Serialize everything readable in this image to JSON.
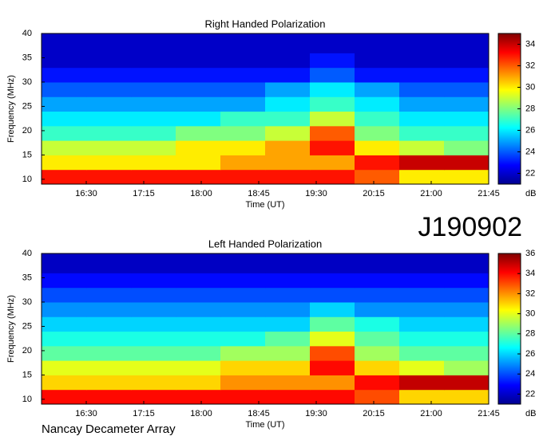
{
  "label": "J190902",
  "footer": "Nancay Decameter Array",
  "chart_data": [
    {
      "type": "heatmap",
      "title": "Right Handed Polarization",
      "xlabel": "Time (UT)",
      "ylabel": "Frequency (MHz)",
      "colorbar_label": "dB",
      "xbins": [
        955,
        990,
        1025,
        1060,
        1095,
        1130,
        1165,
        1200,
        1235,
        1270,
        1305
      ],
      "ybins": [
        9,
        12,
        15,
        18,
        21,
        24,
        27,
        30,
        33,
        36,
        40
      ],
      "values": [
        [
          33,
          33,
          33,
          33,
          33,
          33,
          33,
          32,
          30,
          30
        ],
        [
          30,
          30,
          30,
          30,
          31,
          31,
          31,
          33,
          34,
          34
        ],
        [
          29,
          29,
          29,
          30,
          30,
          31,
          33,
          30,
          29,
          28
        ],
        [
          27,
          27,
          27,
          28,
          28,
          29,
          32,
          28,
          27,
          27
        ],
        [
          26,
          26,
          26,
          26,
          27,
          27,
          29,
          27,
          26,
          26
        ],
        [
          25,
          25,
          25,
          25,
          25,
          26,
          27,
          26,
          25,
          25
        ],
        [
          24,
          24,
          24,
          24,
          24,
          25,
          26,
          25,
          24,
          24
        ],
        [
          23,
          23,
          23,
          23,
          23,
          23,
          24,
          23,
          23,
          23
        ],
        [
          22,
          22,
          22,
          22,
          22,
          22,
          23,
          22,
          22,
          22
        ],
        [
          22,
          22,
          22,
          22,
          22,
          22,
          22,
          22,
          22,
          22
        ]
      ],
      "xlim": [
        955,
        1305
      ],
      "ylim": [
        9,
        40
      ],
      "xticks": [
        {
          "value": 990,
          "label": "16:30"
        },
        {
          "value": 1035,
          "label": "17:15"
        },
        {
          "value": 1080,
          "label": "18:00"
        },
        {
          "value": 1125,
          "label": "18:45"
        },
        {
          "value": 1170,
          "label": "19:30"
        },
        {
          "value": 1215,
          "label": "20:15"
        },
        {
          "value": 1260,
          "label": "21:00"
        },
        {
          "value": 1305,
          "label": "21:45"
        }
      ],
      "yticks": [
        10,
        15,
        20,
        25,
        30,
        35,
        40
      ],
      "clim": [
        21,
        35
      ],
      "cticks": [
        22,
        24,
        26,
        28,
        30,
        32,
        34
      ],
      "colormap": "jet"
    },
    {
      "type": "heatmap",
      "title": "Left Handed Polarization",
      "xlabel": "Time (UT)",
      "ylabel": "Frequency (MHz)",
      "colorbar_label": "dB",
      "xbins": [
        955,
        990,
        1025,
        1060,
        1095,
        1130,
        1165,
        1200,
        1235,
        1270,
        1305
      ],
      "ybins": [
        9,
        12,
        15,
        18,
        21,
        24,
        27,
        30,
        33,
        36,
        40
      ],
      "values": [
        [
          34,
          34,
          34,
          34,
          34,
          34,
          34,
          33,
          31,
          31
        ],
        [
          31,
          31,
          31,
          31,
          32,
          32,
          32,
          34,
          35,
          35
        ],
        [
          30,
          30,
          30,
          30,
          31,
          31,
          34,
          31,
          30,
          29
        ],
        [
          28,
          28,
          28,
          28,
          29,
          29,
          33,
          29,
          28,
          28
        ],
        [
          27,
          27,
          27,
          27,
          27,
          28,
          30,
          28,
          27,
          27
        ],
        [
          26,
          26,
          26,
          26,
          26,
          26,
          28,
          27,
          26,
          26
        ],
        [
          25,
          25,
          25,
          25,
          25,
          25,
          26,
          25,
          25,
          25
        ],
        [
          24,
          24,
          24,
          24,
          24,
          24,
          24,
          24,
          24,
          24
        ],
        [
          23,
          23,
          23,
          23,
          23,
          23,
          23,
          23,
          23,
          23
        ],
        [
          22,
          22,
          22,
          22,
          22,
          22,
          22,
          22,
          22,
          22
        ]
      ],
      "xlim": [
        955,
        1305
      ],
      "ylim": [
        9,
        40
      ],
      "xticks": [
        {
          "value": 990,
          "label": "16:30"
        },
        {
          "value": 1035,
          "label": "17:15"
        },
        {
          "value": 1080,
          "label": "18:00"
        },
        {
          "value": 1125,
          "label": "18:45"
        },
        {
          "value": 1170,
          "label": "19:30"
        },
        {
          "value": 1215,
          "label": "20:15"
        },
        {
          "value": 1260,
          "label": "21:00"
        },
        {
          "value": 1305,
          "label": "21:45"
        }
      ],
      "yticks": [
        10,
        15,
        20,
        25,
        30,
        35,
        40
      ],
      "clim": [
        21,
        36
      ],
      "cticks": [
        22,
        24,
        26,
        28,
        30,
        32,
        34,
        36
      ],
      "colormap": "jet"
    }
  ]
}
